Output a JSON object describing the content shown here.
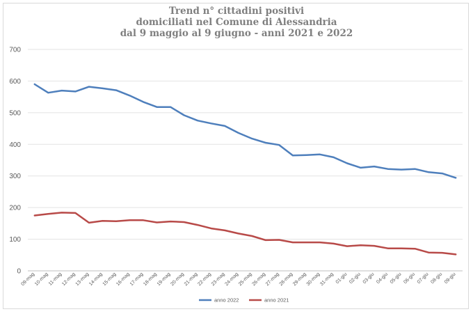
{
  "chart_data": {
    "type": "line",
    "title_lines": [
      "Trend n° cittadini positivi",
      "domiciliati nel Comune di Alessandria",
      "dal 9 maggio al 9 giugno - anni 2021 e 2022"
    ],
    "xlabel": "",
    "ylabel": "",
    "ylim": [
      0,
      700
    ],
    "yticks": [
      0,
      100,
      200,
      300,
      400,
      500,
      600,
      700
    ],
    "grid": true,
    "legend_position": "bottom",
    "categories": [
      "09-mag",
      "10-mag",
      "11-mag",
      "12-mag",
      "13-mag",
      "14-mag",
      "15-mag",
      "16-mag",
      "17-mag",
      "18-mag",
      "19-mag",
      "20-mag",
      "21-mag",
      "22-mag",
      "23-mag",
      "24-mag",
      "25-mag",
      "26-mag",
      "27-mag",
      "28-mag",
      "29-mag",
      "30-mag",
      "31-mag",
      "01-giu",
      "02-giu",
      "03-giu",
      "04-giu",
      "05-giu",
      "06-giu",
      "07-giu",
      "08-giu",
      "09-giu"
    ],
    "series": [
      {
        "name": "anno 2022",
        "color": "#4e7fbc",
        "values": [
          590,
          563,
          570,
          567,
          582,
          577,
          571,
          554,
          534,
          518,
          518,
          492,
          475,
          466,
          458,
          436,
          418,
          405,
          398,
          365,
          366,
          368,
          359,
          340,
          326,
          330,
          322,
          320,
          322,
          312,
          308,
          294
        ]
      },
      {
        "name": "anno 2021",
        "color": "#b84a48",
        "values": [
          175,
          180,
          184,
          183,
          152,
          158,
          157,
          160,
          160,
          153,
          156,
          154,
          145,
          134,
          128,
          118,
          110,
          97,
          98,
          90,
          90,
          90,
          86,
          78,
          81,
          79,
          71,
          71,
          70,
          58,
          57,
          52
        ]
      }
    ]
  }
}
